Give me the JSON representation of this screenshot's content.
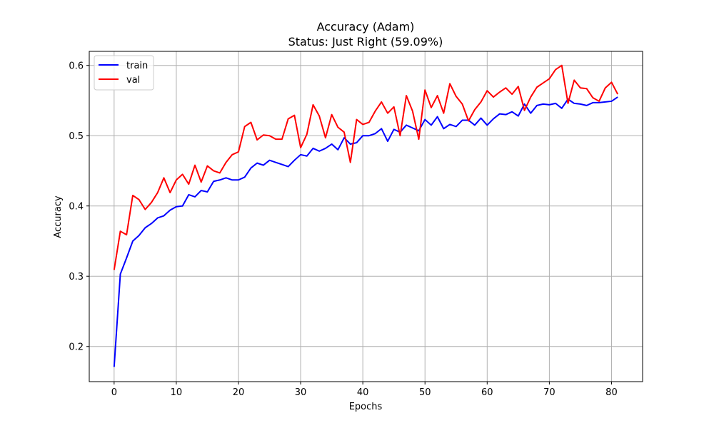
{
  "chart_data": {
    "type": "line",
    "title": "Accuracy (Adam)",
    "subtitle": "Status: Just Right (59.09%)",
    "xlabel": "Epochs",
    "ylabel": "Accuracy",
    "xlim": [
      -4,
      85
    ],
    "ylim": [
      0.15,
      0.62
    ],
    "xticks": [
      0,
      10,
      20,
      30,
      40,
      50,
      60,
      70,
      80
    ],
    "yticks": [
      0.2,
      0.3,
      0.4,
      0.5,
      0.6
    ],
    "ytick_labels": [
      "0.2",
      "0.3",
      "0.4",
      "0.5",
      "0.6"
    ],
    "grid": true,
    "legend_position": "top-left",
    "x": [
      0,
      1,
      2,
      3,
      4,
      5,
      6,
      7,
      8,
      9,
      10,
      11,
      12,
      13,
      14,
      15,
      16,
      17,
      18,
      19,
      20,
      21,
      22,
      23,
      24,
      25,
      26,
      27,
      28,
      29,
      30,
      31,
      32,
      33,
      34,
      35,
      36,
      37,
      38,
      39,
      40,
      41,
      42,
      43,
      44,
      45,
      46,
      47,
      48,
      49,
      50,
      51,
      52,
      53,
      54,
      55,
      56,
      57,
      58,
      59,
      60,
      61,
      62,
      63,
      64,
      65,
      66,
      67,
      68,
      69,
      70,
      71,
      72,
      73,
      74,
      75,
      76,
      77,
      78,
      79,
      80,
      81
    ],
    "series": [
      {
        "name": "train",
        "color": "#0000ff",
        "values": [
          0.171,
          0.303,
          0.326,
          0.35,
          0.358,
          0.369,
          0.375,
          0.383,
          0.386,
          0.394,
          0.399,
          0.4,
          0.416,
          0.413,
          0.422,
          0.42,
          0.435,
          0.437,
          0.44,
          0.437,
          0.437,
          0.441,
          0.454,
          0.461,
          0.458,
          0.465,
          0.462,
          0.459,
          0.456,
          0.465,
          0.473,
          0.471,
          0.482,
          0.478,
          0.482,
          0.488,
          0.48,
          0.497,
          0.488,
          0.49,
          0.5,
          0.5,
          0.503,
          0.51,
          0.492,
          0.509,
          0.505,
          0.515,
          0.511,
          0.507,
          0.523,
          0.515,
          0.527,
          0.51,
          0.516,
          0.513,
          0.522,
          0.522,
          0.515,
          0.525,
          0.515,
          0.524,
          0.531,
          0.53,
          0.534,
          0.528,
          0.545,
          0.532,
          0.543,
          0.545,
          0.544,
          0.546,
          0.539,
          0.552,
          0.546,
          0.545,
          0.543,
          0.547,
          0.547,
          0.548,
          0.549,
          0.555
        ]
      },
      {
        "name": "val",
        "color": "#ff0000",
        "values": [
          0.309,
          0.364,
          0.359,
          0.415,
          0.409,
          0.395,
          0.405,
          0.419,
          0.44,
          0.419,
          0.437,
          0.445,
          0.431,
          0.458,
          0.434,
          0.457,
          0.45,
          0.447,
          0.462,
          0.473,
          0.477,
          0.513,
          0.519,
          0.494,
          0.501,
          0.5,
          0.495,
          0.495,
          0.524,
          0.529,
          0.483,
          0.502,
          0.544,
          0.528,
          0.497,
          0.53,
          0.512,
          0.505,
          0.462,
          0.523,
          0.516,
          0.519,
          0.535,
          0.548,
          0.532,
          0.541,
          0.5,
          0.557,
          0.535,
          0.495,
          0.565,
          0.54,
          0.557,
          0.532,
          0.574,
          0.556,
          0.545,
          0.521,
          0.537,
          0.548,
          0.564,
          0.555,
          0.562,
          0.568,
          0.559,
          0.57,
          0.536,
          0.555,
          0.569,
          0.575,
          0.581,
          0.594,
          0.6,
          0.546,
          0.579,
          0.568,
          0.567,
          0.554,
          0.549,
          0.568,
          0.576,
          0.559
        ]
      }
    ]
  }
}
